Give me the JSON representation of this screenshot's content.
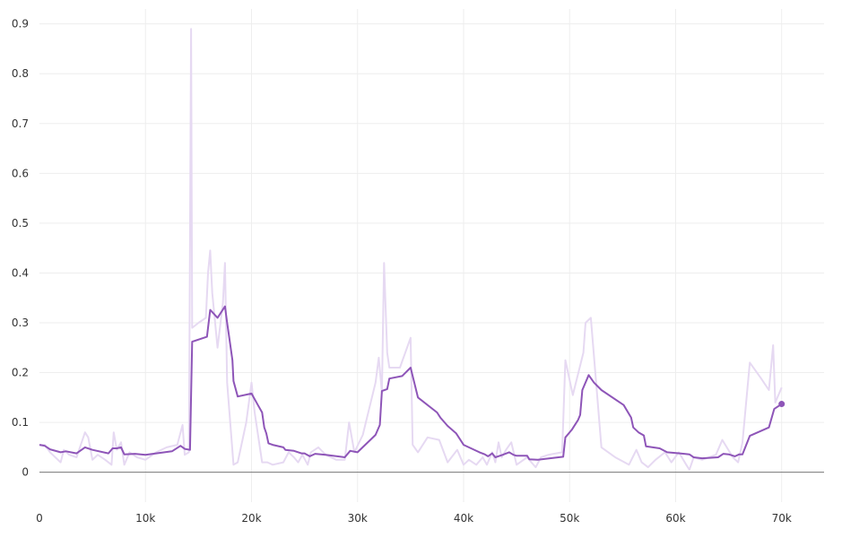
{
  "chart_data": {
    "type": "line",
    "title": "",
    "xlabel": "",
    "ylabel": "",
    "xlim": [
      0,
      74000
    ],
    "ylim": [
      -0.06,
      0.93
    ],
    "grid": true,
    "legend": "none",
    "x_ticks": [
      0,
      10000,
      20000,
      30000,
      40000,
      50000,
      60000,
      70000
    ],
    "x_tick_labels": [
      "0",
      "10k",
      "20k",
      "30k",
      "40k",
      "50k",
      "60k",
      "70k"
    ],
    "y_ticks": [
      0,
      0.1,
      0.2,
      0.3,
      0.4,
      0.5,
      0.6,
      0.7,
      0.8,
      0.9
    ],
    "y_tick_labels": [
      "0",
      "0.1",
      "0.2",
      "0.3",
      "0.4",
      "0.5",
      "0.6",
      "0.7",
      "0.8",
      "0.9"
    ],
    "colors": {
      "smoothed": "#8e55b8",
      "raw": "#e6d9f2",
      "axis": "#777777",
      "grid": "#eeeeee"
    },
    "series": [
      {
        "key": "raw",
        "points": [
          [
            0,
            0.055
          ],
          [
            500,
            0.055
          ],
          [
            1000,
            0.04
          ],
          [
            1500,
            0.03
          ],
          [
            2000,
            0.02
          ],
          [
            2300,
            0.045
          ],
          [
            2800,
            0.035
          ],
          [
            3500,
            0.03
          ],
          [
            4300,
            0.08
          ],
          [
            4600,
            0.07
          ],
          [
            5000,
            0.025
          ],
          [
            5500,
            0.035
          ],
          [
            6200,
            0.025
          ],
          [
            6800,
            0.015
          ],
          [
            7000,
            0.08
          ],
          [
            7300,
            0.045
          ],
          [
            7700,
            0.06
          ],
          [
            8000,
            0.015
          ],
          [
            8500,
            0.04
          ],
          [
            9200,
            0.03
          ],
          [
            10000,
            0.025
          ],
          [
            11000,
            0.04
          ],
          [
            12000,
            0.05
          ],
          [
            13000,
            0.055
          ],
          [
            13500,
            0.095
          ],
          [
            13700,
            0.035
          ],
          [
            14100,
            0.04
          ],
          [
            14300,
            0.89
          ],
          [
            14400,
            0.29
          ],
          [
            15000,
            0.3
          ],
          [
            15700,
            0.31
          ],
          [
            15900,
            0.4
          ],
          [
            16100,
            0.445
          ],
          [
            16300,
            0.36
          ],
          [
            16800,
            0.25
          ],
          [
            17300,
            0.34
          ],
          [
            17500,
            0.42
          ],
          [
            17700,
            0.18
          ],
          [
            18300,
            0.015
          ],
          [
            18700,
            0.02
          ],
          [
            19500,
            0.1
          ],
          [
            20000,
            0.18
          ],
          [
            20300,
            0.12
          ],
          [
            21000,
            0.02
          ],
          [
            21500,
            0.02
          ],
          [
            22000,
            0.015
          ],
          [
            23000,
            0.02
          ],
          [
            23500,
            0.04
          ],
          [
            24000,
            0.03
          ],
          [
            24400,
            0.02
          ],
          [
            24800,
            0.035
          ],
          [
            25300,
            0.015
          ],
          [
            25600,
            0.04
          ],
          [
            26300,
            0.05
          ],
          [
            27000,
            0.035
          ],
          [
            28000,
            0.025
          ],
          [
            28800,
            0.025
          ],
          [
            29200,
            0.1
          ],
          [
            29700,
            0.04
          ],
          [
            30500,
            0.075
          ],
          [
            31700,
            0.18
          ],
          [
            32000,
            0.23
          ],
          [
            32300,
            0.16
          ],
          [
            32500,
            0.42
          ],
          [
            32800,
            0.24
          ],
          [
            33000,
            0.21
          ],
          [
            34000,
            0.21
          ],
          [
            35000,
            0.27
          ],
          [
            35200,
            0.055
          ],
          [
            35700,
            0.04
          ],
          [
            36600,
            0.07
          ],
          [
            37700,
            0.065
          ],
          [
            38500,
            0.02
          ],
          [
            39400,
            0.045
          ],
          [
            40000,
            0.015
          ],
          [
            40500,
            0.025
          ],
          [
            41200,
            0.015
          ],
          [
            41800,
            0.03
          ],
          [
            42200,
            0.015
          ],
          [
            42700,
            0.04
          ],
          [
            43000,
            0.02
          ],
          [
            43300,
            0.06
          ],
          [
            43600,
            0.03
          ],
          [
            44000,
            0.045
          ],
          [
            44500,
            0.06
          ],
          [
            45000,
            0.015
          ],
          [
            46000,
            0.03
          ],
          [
            46400,
            0.02
          ],
          [
            46800,
            0.01
          ],
          [
            47300,
            0.03
          ],
          [
            48000,
            0.035
          ],
          [
            49300,
            0.04
          ],
          [
            49600,
            0.225
          ],
          [
            50300,
            0.155
          ],
          [
            51300,
            0.24
          ],
          [
            51500,
            0.3
          ],
          [
            52000,
            0.31
          ],
          [
            53000,
            0.05
          ],
          [
            54300,
            0.03
          ],
          [
            55600,
            0.015
          ],
          [
            56300,
            0.045
          ],
          [
            56800,
            0.02
          ],
          [
            57400,
            0.01
          ],
          [
            58100,
            0.025
          ],
          [
            59000,
            0.04
          ],
          [
            59600,
            0.02
          ],
          [
            60300,
            0.04
          ],
          [
            61000,
            0.015
          ],
          [
            61300,
            0.005
          ],
          [
            61700,
            0.03
          ],
          [
            62500,
            0.025
          ],
          [
            63800,
            0.035
          ],
          [
            64400,
            0.065
          ],
          [
            65400,
            0.03
          ],
          [
            65900,
            0.02
          ],
          [
            66300,
            0.06
          ],
          [
            67000,
            0.22
          ],
          [
            68000,
            0.19
          ],
          [
            68800,
            0.165
          ],
          [
            69200,
            0.255
          ],
          [
            69400,
            0.14
          ],
          [
            70000,
            0.17
          ]
        ]
      },
      {
        "key": "smoothed",
        "points": [
          [
            0,
            0.055
          ],
          [
            500,
            0.053
          ],
          [
            1000,
            0.046
          ],
          [
            2000,
            0.04
          ],
          [
            2500,
            0.042
          ],
          [
            3500,
            0.038
          ],
          [
            4300,
            0.05
          ],
          [
            5000,
            0.045
          ],
          [
            6500,
            0.038
          ],
          [
            6900,
            0.048
          ],
          [
            7300,
            0.048
          ],
          [
            7700,
            0.05
          ],
          [
            8000,
            0.036
          ],
          [
            9000,
            0.037
          ],
          [
            10000,
            0.035
          ],
          [
            12500,
            0.042
          ],
          [
            13300,
            0.053
          ],
          [
            13700,
            0.047
          ],
          [
            14200,
            0.045
          ],
          [
            14400,
            0.262
          ],
          [
            15800,
            0.272
          ],
          [
            16100,
            0.326
          ],
          [
            16800,
            0.31
          ],
          [
            17500,
            0.333
          ],
          [
            17700,
            0.3
          ],
          [
            17900,
            0.27
          ],
          [
            18200,
            0.225
          ],
          [
            18300,
            0.183
          ],
          [
            18700,
            0.152
          ],
          [
            20000,
            0.158
          ],
          [
            20600,
            0.135
          ],
          [
            21000,
            0.12
          ],
          [
            21200,
            0.09
          ],
          [
            21400,
            0.078
          ],
          [
            21600,
            0.058
          ],
          [
            22000,
            0.055
          ],
          [
            23000,
            0.05
          ],
          [
            23200,
            0.045
          ],
          [
            24000,
            0.043
          ],
          [
            24700,
            0.038
          ],
          [
            25000,
            0.038
          ],
          [
            25500,
            0.032
          ],
          [
            26000,
            0.037
          ],
          [
            27000,
            0.035
          ],
          [
            28800,
            0.03
          ],
          [
            29300,
            0.043
          ],
          [
            30000,
            0.04
          ],
          [
            31700,
            0.075
          ],
          [
            32100,
            0.095
          ],
          [
            32300,
            0.163
          ],
          [
            32800,
            0.167
          ],
          [
            33000,
            0.188
          ],
          [
            34200,
            0.193
          ],
          [
            35000,
            0.21
          ],
          [
            35700,
            0.15
          ],
          [
            37500,
            0.12
          ],
          [
            37800,
            0.11
          ],
          [
            38500,
            0.093
          ],
          [
            39300,
            0.078
          ],
          [
            40000,
            0.055
          ],
          [
            40700,
            0.048
          ],
          [
            41500,
            0.04
          ],
          [
            42000,
            0.036
          ],
          [
            42300,
            0.032
          ],
          [
            42700,
            0.038
          ],
          [
            43000,
            0.03
          ],
          [
            43700,
            0.035
          ],
          [
            44300,
            0.04
          ],
          [
            44700,
            0.035
          ],
          [
            45000,
            0.033
          ],
          [
            46000,
            0.033
          ],
          [
            46200,
            0.026
          ],
          [
            47000,
            0.025
          ],
          [
            49400,
            0.031
          ],
          [
            49600,
            0.07
          ],
          [
            50200,
            0.085
          ],
          [
            50800,
            0.105
          ],
          [
            51000,
            0.115
          ],
          [
            51200,
            0.165
          ],
          [
            51800,
            0.195
          ],
          [
            52300,
            0.18
          ],
          [
            53000,
            0.165
          ],
          [
            55100,
            0.135
          ],
          [
            55800,
            0.11
          ],
          [
            56000,
            0.09
          ],
          [
            56500,
            0.08
          ],
          [
            57000,
            0.074
          ],
          [
            57200,
            0.052
          ],
          [
            58500,
            0.048
          ],
          [
            59200,
            0.04
          ],
          [
            60400,
            0.038
          ],
          [
            61300,
            0.036
          ],
          [
            61700,
            0.03
          ],
          [
            62500,
            0.028
          ],
          [
            64000,
            0.03
          ],
          [
            64500,
            0.037
          ],
          [
            65000,
            0.036
          ],
          [
            65600,
            0.032
          ],
          [
            66000,
            0.036
          ],
          [
            66300,
            0.036
          ],
          [
            67000,
            0.073
          ],
          [
            68800,
            0.09
          ],
          [
            69300,
            0.127
          ],
          [
            70000,
            0.137
          ]
        ],
        "end_marker": true
      }
    ]
  }
}
